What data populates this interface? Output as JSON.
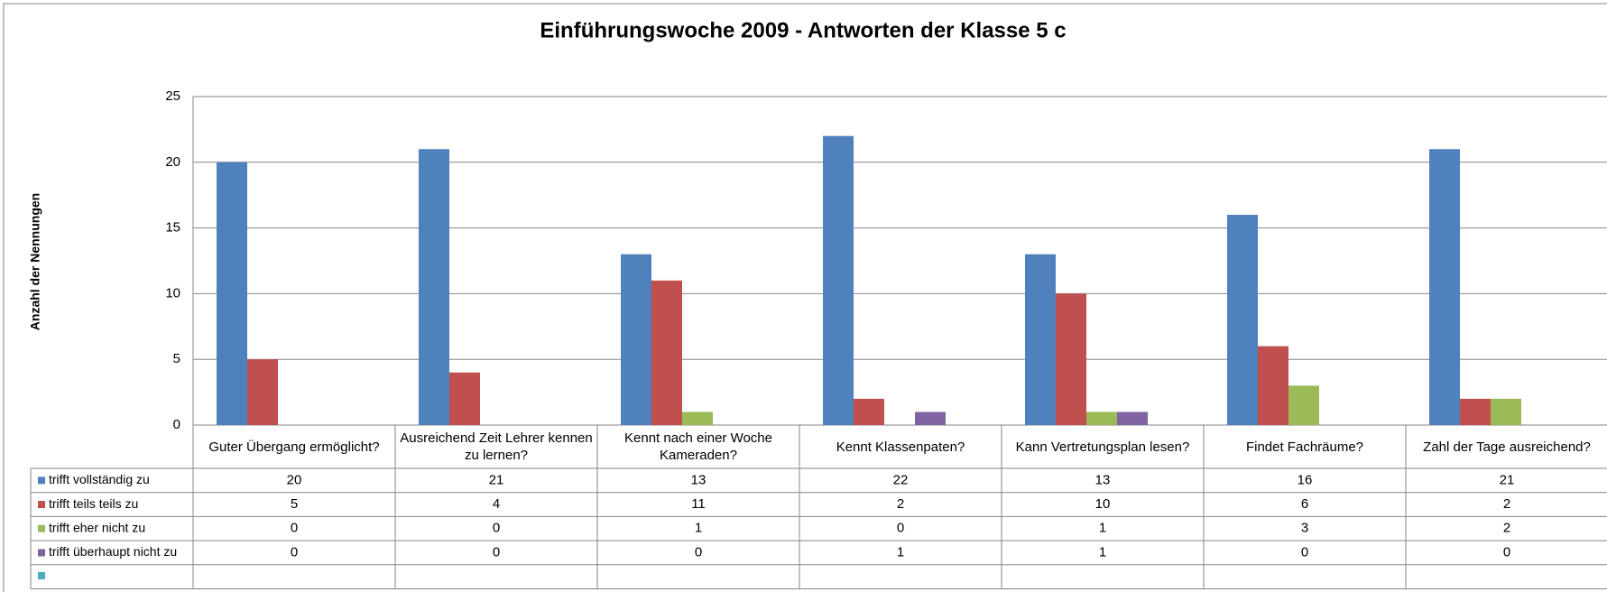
{
  "chart_data": {
    "type": "bar",
    "title": "Einführungswoche 2009 - Antworten der Klasse 5 c",
    "y_label": "Anzahl der Nennungen",
    "categories": [
      "Guter Übergang ermöglicht?",
      "Ausreichend Zeit Lehrer kennen zu lernen?",
      "Kennt nach einer Woche Kameraden?",
      "Kennt Klassenpaten?",
      "Kann Vertretungsplan lesen?",
      "Findet Fachräume?",
      "Zahl der Tage ausreichend?"
    ],
    "series": [
      {
        "name": "trifft vollständig zu",
        "color": "#4f81bd",
        "values": [
          20,
          21,
          13,
          22,
          13,
          16,
          21
        ]
      },
      {
        "name": "trifft teils teils zu",
        "color": "#c0504d",
        "values": [
          5,
          4,
          11,
          2,
          10,
          6,
          2
        ]
      },
      {
        "name": "trifft eher nicht zu",
        "color": "#9bbb59",
        "values": [
          0,
          0,
          1,
          0,
          1,
          3,
          2
        ]
      },
      {
        "name": "trifft überhaupt nicht zu",
        "color": "#8064a2",
        "values": [
          0,
          0,
          0,
          1,
          1,
          0,
          0
        ]
      }
    ],
    "ylim": [
      0,
      25
    ],
    "yticks": [
      0,
      5,
      10,
      15,
      20,
      25
    ],
    "grid": true
  }
}
